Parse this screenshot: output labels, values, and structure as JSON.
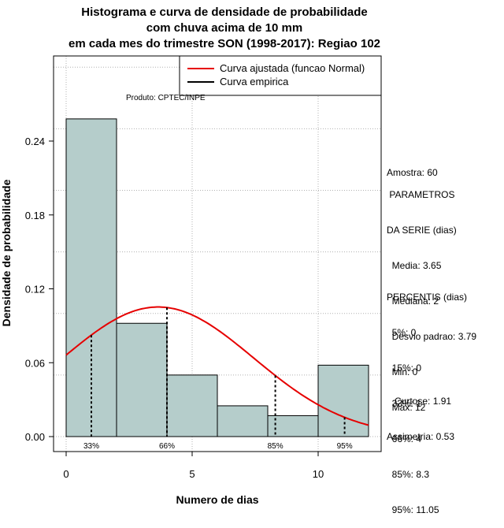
{
  "chart_data": {
    "type": "bar",
    "title_lines": [
      "Histograma e curva de densidade de probabilidade",
      "com chuva acima de 10 mm",
      "em cada mes do trimestre SON (1998-2017): Regiao 102"
    ],
    "xlabel": "Numero de dias",
    "ylabel": "Densidade de probabilidade",
    "xlim": [
      -1,
      12.5
    ],
    "ylim": [
      0,
      0.3
    ],
    "x_ticks": [
      0,
      5,
      10
    ],
    "y_ticks": [
      0.0,
      0.06,
      0.12,
      0.18,
      0.24
    ],
    "y_tick_labels": [
      "0.00",
      "0.06",
      "0.12",
      "0.18",
      "0.24"
    ],
    "grid": true,
    "bins": [
      {
        "start": 0,
        "end": 2,
        "density": 0.258
      },
      {
        "start": 2,
        "end": 4,
        "density": 0.092
      },
      {
        "start": 4,
        "end": 6,
        "density": 0.05
      },
      {
        "start": 6,
        "end": 8,
        "density": 0.025
      },
      {
        "start": 8,
        "end": 10,
        "density": 0.017
      },
      {
        "start": 10,
        "end": 12,
        "density": 0.058
      }
    ],
    "bar_color": "#b5cdcb",
    "curve_color": "#e60000",
    "normal_fit": {
      "mean": 3.65,
      "sd": 3.79,
      "x_range": [
        0,
        12
      ]
    },
    "percentile_markers": [
      {
        "label": "33%",
        "x": 1
      },
      {
        "label": "66%",
        "x": 4
      },
      {
        "label": "85%",
        "x": 8.3
      },
      {
        "label": "95%",
        "x": 11.05
      }
    ],
    "legend": [
      {
        "label": "Curva ajustada (funcao Normal)",
        "color": "#e60000"
      },
      {
        "label": "Curva empirica",
        "color": "#000000"
      }
    ],
    "legend_position": "top-right",
    "credit": "Produto: CPTEC/INPE"
  },
  "stats_panel": {
    "amostra": "Amostra: 60",
    "parametros_title": " PARAMETROS",
    "parametros_subtitle": "DA SERIE (dias)",
    "media": "  Media: 3.65",
    "mediana": "  Mediana: 2",
    "desvio": "  Desvio padrao: 3.79",
    "min": "  Min: 0",
    "max": "  Max: 12",
    "percentis_title": "PERCENTIS (dias)",
    "p5": "  5%: 0",
    "p15": "  15%: 0",
    "p33": "  33%: 1",
    "p66": "  66%: 4",
    "p85": "  85%: 8.3",
    "p95": "  95%: 11.05",
    "curtose": "   Curtose: 1.91",
    "assimetria": "Assimetria: 0.53"
  }
}
